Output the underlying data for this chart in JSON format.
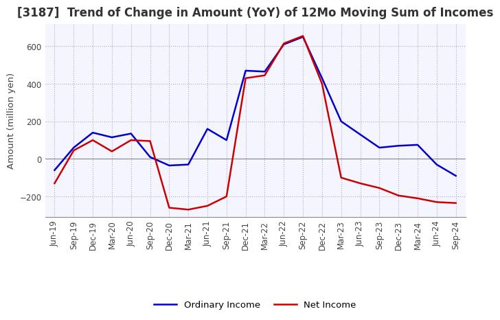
{
  "title": "[3187]  Trend of Change in Amount (YoY) of 12Mo Moving Sum of Incomes",
  "ylabel": "Amount (million yen)",
  "ylim": [
    -310,
    720
  ],
  "yticks": [
    -200,
    0,
    200,
    400,
    600
  ],
  "x_labels": [
    "Jun-19",
    "Sep-19",
    "Dec-19",
    "Mar-20",
    "Jun-20",
    "Sep-20",
    "Dec-20",
    "Mar-21",
    "Jun-21",
    "Sep-21",
    "Dec-21",
    "Mar-22",
    "Jun-22",
    "Sep-22",
    "Dec-22",
    "Mar-23",
    "Jun-23",
    "Sep-23",
    "Dec-23",
    "Mar-24",
    "Jun-24",
    "Sep-24"
  ],
  "ordinary_income": [
    -60,
    60,
    140,
    115,
    135,
    10,
    -35,
    -30,
    160,
    100,
    470,
    465,
    610,
    650,
    430,
    200,
    130,
    60,
    70,
    75,
    -30,
    -90
  ],
  "net_income": [
    -130,
    45,
    100,
    40,
    100,
    95,
    -260,
    -270,
    -250,
    -200,
    430,
    445,
    615,
    655,
    400,
    -100,
    -130,
    -155,
    -195,
    -210,
    -230,
    -235
  ],
  "ordinary_color": "#0000cc",
  "net_color": "#cc0000",
  "background_color": "#ffffff",
  "plot_bg_color": "#f5f5ff",
  "grid_color": "#aaaacc",
  "title_fontsize": 12,
  "label_fontsize": 9.5,
  "tick_fontsize": 8.5,
  "legend_fontsize": 9.5,
  "linewidth": 1.8
}
